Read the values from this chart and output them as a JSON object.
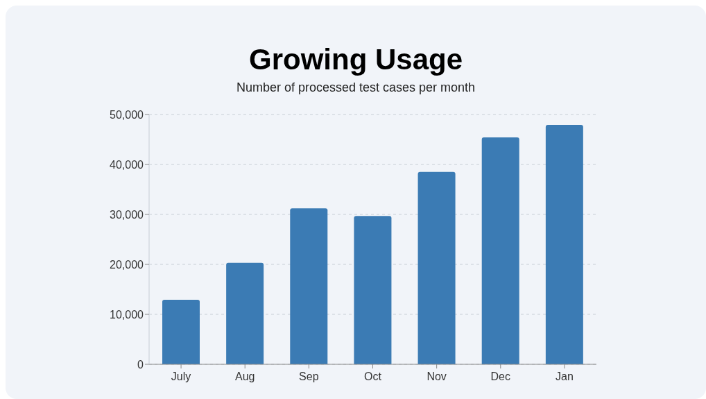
{
  "chart_data": {
    "type": "bar",
    "title": "Growing Usage",
    "subtitle": "Number of processed test cases per month",
    "categories": [
      "July",
      "Aug",
      "Sep",
      "Oct",
      "Nov",
      "Dec",
      "Jan"
    ],
    "values": [
      12900,
      20300,
      31200,
      29700,
      38500,
      45400,
      47900
    ],
    "color": "#3b7bb4",
    "ylim": [
      0,
      50000
    ],
    "yticks": [
      0,
      {
        "value": 10000,
        "label": "10,000"
      },
      {
        "value": 20000,
        "label": "20,000"
      },
      {
        "value": 30000,
        "label": "30,000"
      },
      {
        "value": 40000,
        "label": "40,000"
      },
      {
        "value": 50000,
        "label": "50,000"
      }
    ],
    "grid": "y"
  }
}
